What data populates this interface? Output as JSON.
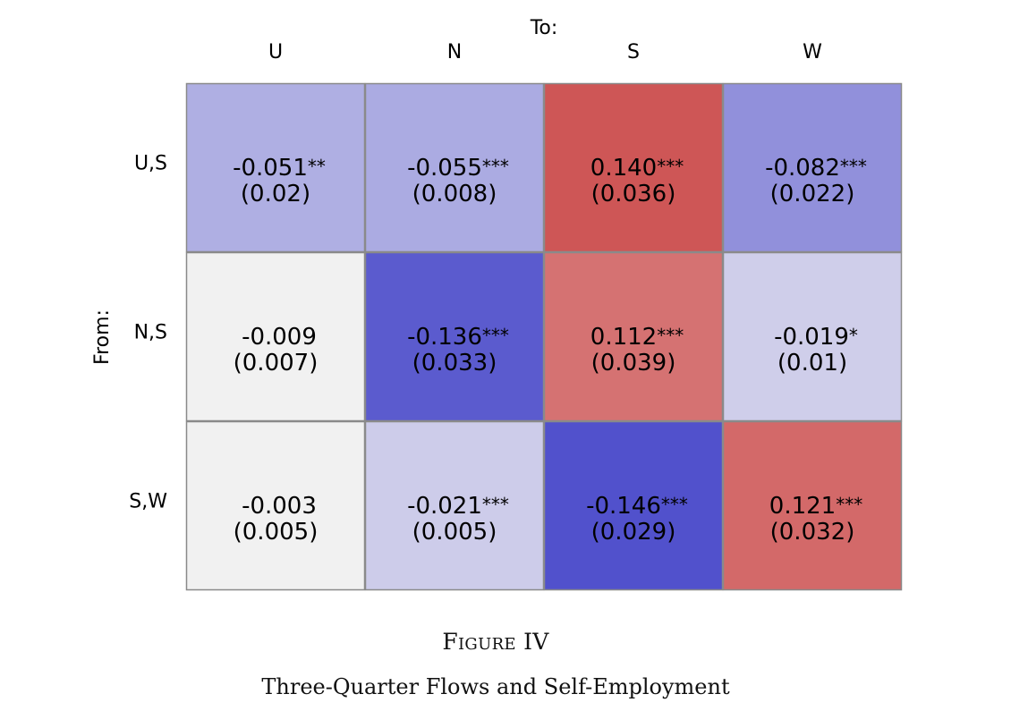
{
  "figure": {
    "label": "Figure IV",
    "caption": "Three-Quarter Flows and Self-Employment"
  },
  "chart_data": {
    "type": "heatmap",
    "x_axis_title": "To:",
    "y_axis_title": "From:",
    "columns": [
      "U",
      "N",
      "S",
      "W"
    ],
    "rows": [
      "U,S",
      "N,S",
      "S,W"
    ],
    "cells": [
      [
        {
          "value": "-0.051",
          "stars": "**",
          "se": "(0.02)"
        },
        {
          "value": "-0.055",
          "stars": "***",
          "se": "(0.008)"
        },
        {
          "value": "0.140",
          "stars": "***",
          "se": "(0.036)"
        },
        {
          "value": "-0.082",
          "stars": "***",
          "se": "(0.022)"
        }
      ],
      [
        {
          "value": "-0.009",
          "stars": "",
          "se": "(0.007)"
        },
        {
          "value": "-0.136",
          "stars": "***",
          "se": "(0.033)"
        },
        {
          "value": "0.112",
          "stars": "***",
          "se": "(0.039)"
        },
        {
          "value": "-0.019",
          "stars": "*",
          "se": "(0.01)"
        }
      ],
      [
        {
          "value": "-0.003",
          "stars": "",
          "se": "(0.005)"
        },
        {
          "value": "-0.021",
          "stars": "***",
          "se": "(0.005)"
        },
        {
          "value": "-0.146",
          "stars": "***",
          "se": "(0.029)"
        },
        {
          "value": "0.121",
          "stars": "***",
          "se": "(0.032)"
        }
      ]
    ],
    "colors": {
      "insignificant": "#f1f1f1",
      "negative_strong": "#5151cc",
      "negative_light": "#e2e1ef",
      "positive_strong": "#cc5050",
      "positive_light": "#f2e3e3",
      "cell_border": "#8a8a8a"
    },
    "color_scale_abs_max": 0.146,
    "legend": "none",
    "grid": false
  }
}
